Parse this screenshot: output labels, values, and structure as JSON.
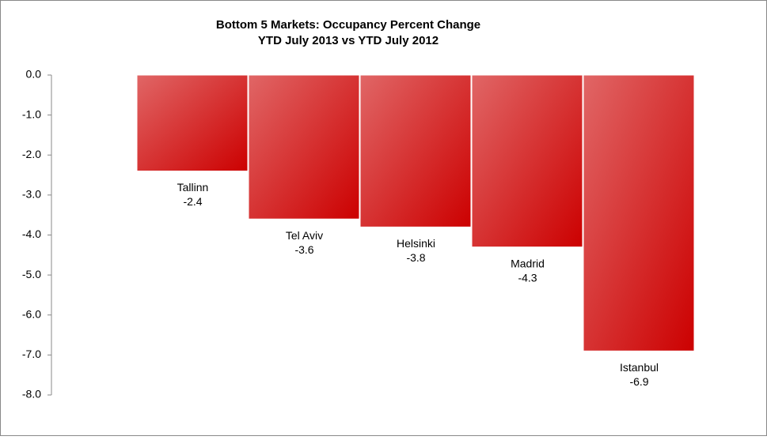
{
  "chart_data": {
    "type": "bar",
    "title": "Bottom 5 Markets: Occupancy Percent Change",
    "subtitle": "YTD July 2013 vs YTD July 2012",
    "categories": [
      "Tallinn",
      "Tel Aviv",
      "Helsinki",
      "Madrid",
      "Istanbul"
    ],
    "values": [
      -2.4,
      -3.6,
      -3.8,
      -4.3,
      -6.9
    ],
    "color": "#cc0000",
    "ylim": [
      -8,
      0
    ],
    "yticks": [
      {
        "value": 0,
        "label": "0.0"
      },
      {
        "value": -1,
        "label": "-1.0"
      },
      {
        "value": -2,
        "label": "-2.0"
      },
      {
        "value": -3,
        "label": "-3.0"
      },
      {
        "value": -4,
        "label": "-4.0"
      },
      {
        "value": -5,
        "label": "-5.0"
      },
      {
        "value": -6,
        "label": "-6.0"
      },
      {
        "value": -7,
        "label": "-7.0"
      },
      {
        "value": -8,
        "label": "-8.0"
      }
    ],
    "grid": false
  }
}
